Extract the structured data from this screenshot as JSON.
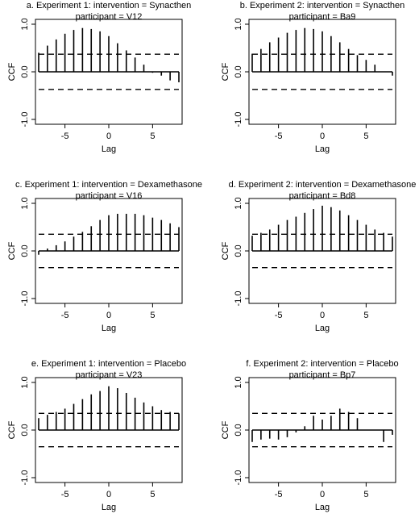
{
  "figure": {
    "panel_count": 6
  },
  "chart_data": [
    {
      "type": "bar",
      "title": "a. Experiment 1: intervention = Synacthen",
      "subtitle": "participant = V12",
      "xlabel": "Lag",
      "ylabel": "CCF",
      "xlim": [
        -8,
        8
      ],
      "ylim": [
        -1.0,
        1.0
      ],
      "xticks": [
        "-5",
        "0",
        "5"
      ],
      "yticks": [
        "-1.0",
        "0.0",
        "1.0"
      ],
      "confidence_band": 0.37,
      "lags": [
        -8,
        -7,
        -6,
        -5,
        -4,
        -3,
        -2,
        -1,
        0,
        1,
        2,
        3,
        4,
        5,
        6,
        7,
        8
      ],
      "values": [
        0.4,
        0.55,
        0.68,
        0.8,
        0.88,
        0.92,
        0.9,
        0.85,
        0.75,
        0.6,
        0.45,
        0.3,
        0.15,
        -0.02,
        -0.08,
        -0.18,
        -0.22
      ]
    },
    {
      "type": "bar",
      "title": "b. Experiment 2: intervention = Synacthen",
      "subtitle": "participant = Ba9",
      "xlabel": "Lag",
      "ylabel": "CCF",
      "xlim": [
        -8,
        8
      ],
      "ylim": [
        -1.0,
        1.0
      ],
      "xticks": [
        "-5",
        "0",
        "5"
      ],
      "yticks": [
        "-1.0",
        "0.0",
        "1.0"
      ],
      "confidence_band": 0.37,
      "lags": [
        -8,
        -7,
        -6,
        -5,
        -4,
        -3,
        -2,
        -1,
        0,
        1,
        2,
        3,
        4,
        5,
        6,
        7,
        8
      ],
      "values": [
        0.38,
        0.48,
        0.62,
        0.72,
        0.82,
        0.88,
        0.92,
        0.9,
        0.85,
        0.75,
        0.62,
        0.48,
        0.35,
        0.25,
        0.15,
        0.0,
        -0.08
      ]
    },
    {
      "type": "bar",
      "title": "c. Experiment 1: intervention = Dexamethasone",
      "subtitle": "participant = V16",
      "xlabel": "Lag",
      "ylabel": "CCF",
      "xlim": [
        -8,
        8
      ],
      "ylim": [
        -1.0,
        1.0
      ],
      "xticks": [
        "-5",
        "0",
        "5"
      ],
      "yticks": [
        "-1.0",
        "0.0",
        "1.0"
      ],
      "confidence_band": 0.35,
      "lags": [
        -8,
        -7,
        -6,
        -5,
        -4,
        -3,
        -2,
        -1,
        0,
        1,
        2,
        3,
        4,
        5,
        6,
        7,
        8
      ],
      "values": [
        -0.08,
        0.05,
        0.12,
        0.2,
        0.3,
        0.4,
        0.52,
        0.65,
        0.75,
        0.78,
        0.78,
        0.78,
        0.75,
        0.7,
        0.65,
        0.58,
        0.5
      ]
    },
    {
      "type": "bar",
      "title": "d. Experiment 2: intervention = Dexamethasone",
      "subtitle": "participant = Bd8",
      "xlabel": "Lag",
      "ylabel": "CCF",
      "xlim": [
        -8,
        8
      ],
      "ylim": [
        -1.0,
        1.0
      ],
      "xticks": [
        "-5",
        "0",
        "5"
      ],
      "yticks": [
        "-1.0",
        "0.0",
        "1.0"
      ],
      "confidence_band": 0.35,
      "lags": [
        -8,
        -7,
        -6,
        -5,
        -4,
        -3,
        -2,
        -1,
        0,
        1,
        2,
        3,
        4,
        5,
        6,
        7,
        8
      ],
      "values": [
        0.32,
        0.38,
        0.45,
        0.55,
        0.65,
        0.72,
        0.8,
        0.88,
        0.95,
        0.92,
        0.85,
        0.75,
        0.65,
        0.55,
        0.45,
        0.38,
        0.3
      ]
    },
    {
      "type": "bar",
      "title": "e. Experiment 1: intervention = Placebo",
      "subtitle": "participant = V23",
      "xlabel": "Lag",
      "ylabel": "CCF",
      "xlim": [
        -8,
        8
      ],
      "ylim": [
        -1.0,
        1.0
      ],
      "xticks": [
        "-5",
        "0",
        "5"
      ],
      "yticks": [
        "-1.0",
        "0.0",
        "1.0"
      ],
      "confidence_band": 0.35,
      "lags": [
        -8,
        -7,
        -6,
        -5,
        -4,
        -3,
        -2,
        -1,
        0,
        1,
        2,
        3,
        4,
        5,
        6,
        7,
        8
      ],
      "values": [
        0.25,
        0.32,
        0.38,
        0.45,
        0.55,
        0.65,
        0.75,
        0.82,
        0.92,
        0.88,
        0.78,
        0.68,
        0.58,
        0.5,
        0.42,
        0.38,
        0.35
      ]
    },
    {
      "type": "bar",
      "title": "f. Experiment 2: intervention = Placebo",
      "subtitle": "participant = Bp7",
      "xlabel": "Lag",
      "ylabel": "CCF",
      "xlim": [
        -8,
        8
      ],
      "ylim": [
        -1.0,
        1.0
      ],
      "xticks": [
        "-5",
        "0",
        "5"
      ],
      "yticks": [
        "-1.0",
        "0.0",
        "1.0"
      ],
      "confidence_band": 0.35,
      "lags": [
        -8,
        -7,
        -6,
        -5,
        -4,
        -3,
        -2,
        -1,
        0,
        1,
        2,
        3,
        4,
        5,
        6,
        7,
        8
      ],
      "values": [
        -0.25,
        -0.2,
        -0.18,
        -0.2,
        -0.15,
        -0.05,
        0.08,
        0.3,
        0.22,
        0.3,
        0.45,
        0.38,
        0.25,
        0.0,
        0.0,
        -0.25,
        -0.1
      ]
    }
  ]
}
